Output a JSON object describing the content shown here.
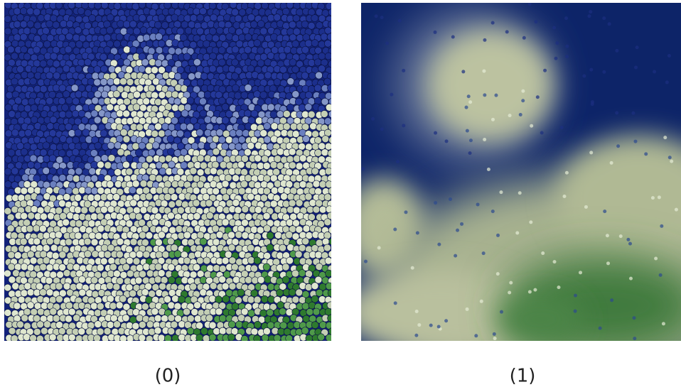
{
  "panels": [
    {
      "label": "(0)"
    },
    {
      "label": "(1)"
    }
  ]
}
